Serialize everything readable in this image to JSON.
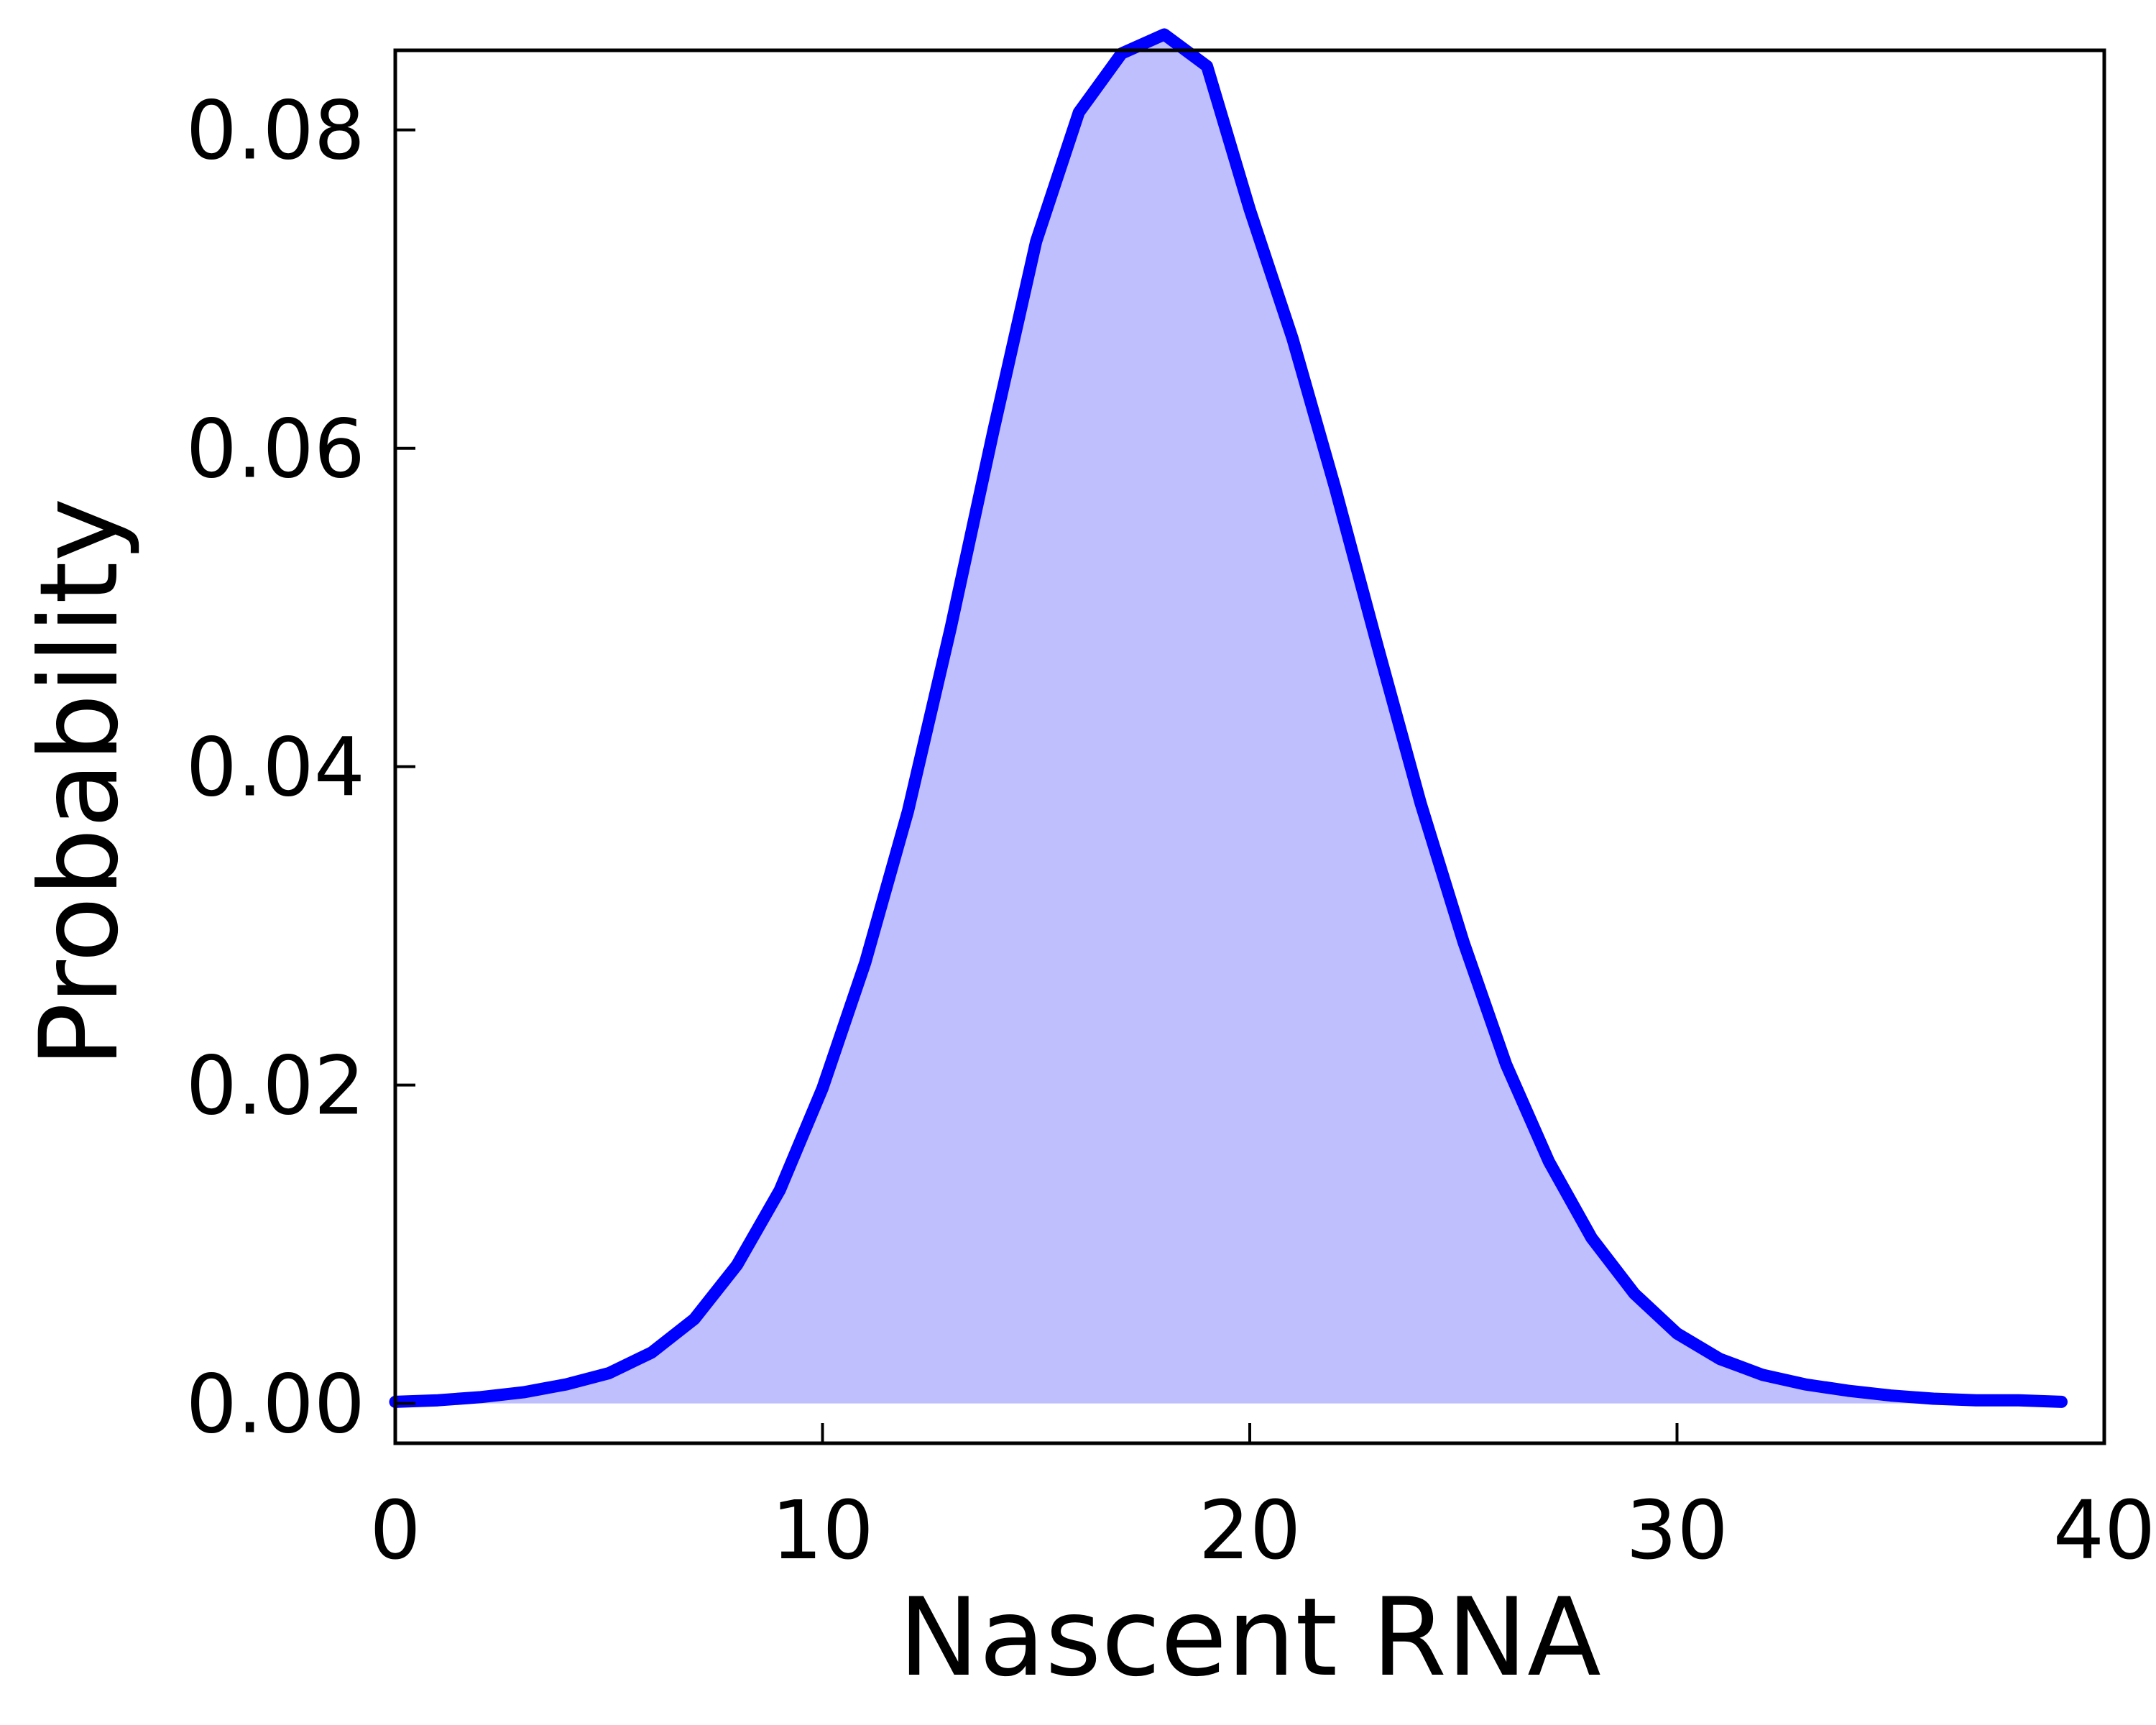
{
  "chart_data": {
    "type": "area",
    "title": "",
    "xlabel": "Nascent RNA",
    "ylabel": "Probability",
    "xlim": [
      0,
      40
    ],
    "ylim": [
      -0.0025,
      0.085
    ],
    "xticks": [
      0,
      10,
      20,
      30,
      40
    ],
    "xtick_labels": [
      "0",
      "10",
      "20",
      "30",
      "40"
    ],
    "yticks": [
      0.0,
      0.02,
      0.04,
      0.06,
      0.08
    ],
    "ytick_labels": [
      "0.00",
      "0.02",
      "0.04",
      "0.06",
      "0.08"
    ],
    "grid": false,
    "line_color": "#0000ff",
    "fill_color": "#bfbffd",
    "series": [
      {
        "x": [
          0,
          1,
          2,
          3,
          4,
          5,
          6,
          7,
          8,
          9,
          10,
          11,
          12,
          13,
          14,
          15,
          16,
          17,
          18,
          19,
          20,
          21,
          22,
          23,
          24,
          25,
          26,
          27,
          28,
          29,
          30,
          31,
          32,
          33,
          34,
          35,
          36,
          37,
          38,
          39
        ],
        "values": [
          0.0001,
          0.0002,
          0.0004,
          0.0007,
          0.0012,
          0.0019,
          0.0032,
          0.0053,
          0.0087,
          0.0134,
          0.0198,
          0.0277,
          0.0372,
          0.0487,
          0.0611,
          0.073,
          0.0811,
          0.0848,
          0.086,
          0.084,
          0.075,
          0.0669,
          0.0575,
          0.0475,
          0.0377,
          0.029,
          0.0213,
          0.0152,
          0.0104,
          0.0069,
          0.0044,
          0.0028,
          0.0018,
          0.0012,
          0.0008,
          0.0005,
          0.0003,
          0.0002,
          0.0002,
          0.0001
        ]
      }
    ]
  }
}
